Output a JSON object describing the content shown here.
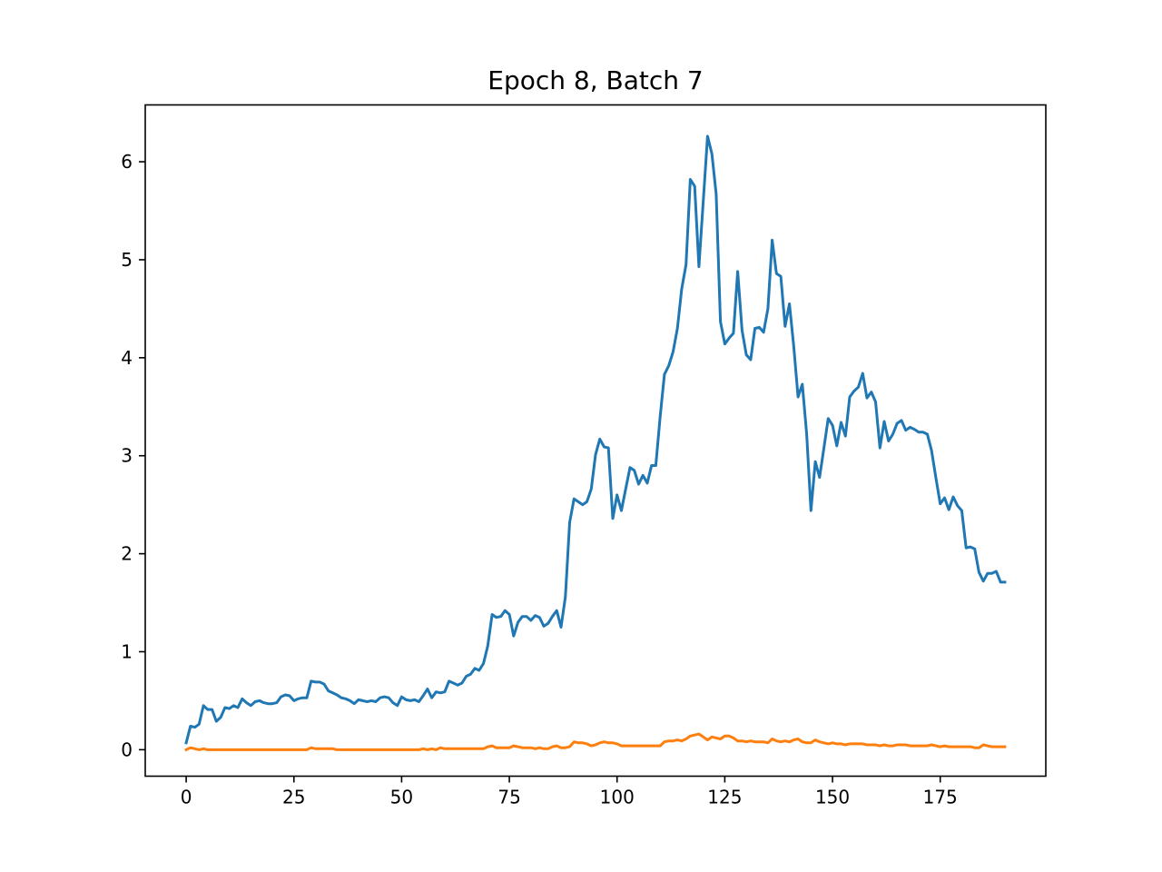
{
  "chart_data": {
    "type": "line",
    "title": "Epoch 8, Batch 7",
    "xlabel": "",
    "ylabel": "",
    "xlim": [
      -9.5,
      199.5
    ],
    "ylim": [
      -0.27,
      6.58
    ],
    "xticks": [
      0,
      25,
      50,
      75,
      100,
      125,
      150,
      175
    ],
    "yticks": [
      0,
      1,
      2,
      3,
      4,
      5,
      6
    ],
    "grid": false,
    "legend": "none",
    "series": [
      {
        "color": "#1f77b4",
        "x": [
          0,
          1,
          2,
          3,
          4,
          5,
          6,
          7,
          8,
          9,
          10,
          11,
          12,
          13,
          14,
          15,
          16,
          17,
          18,
          19,
          20,
          21,
          22,
          23,
          24,
          25,
          26,
          27,
          28,
          29,
          30,
          31,
          32,
          33,
          34,
          35,
          36,
          37,
          38,
          39,
          40,
          41,
          42,
          43,
          44,
          45,
          46,
          47,
          48,
          49,
          50,
          51,
          52,
          53,
          54,
          55,
          56,
          57,
          58,
          59,
          60,
          61,
          62,
          63,
          64,
          65,
          66,
          67,
          68,
          69,
          70,
          71,
          72,
          73,
          74,
          75,
          76,
          77,
          78,
          79,
          80,
          81,
          82,
          83,
          84,
          85,
          86,
          87,
          88,
          89,
          90,
          91,
          92,
          93,
          94,
          95,
          96,
          97,
          98,
          99,
          100,
          101,
          102,
          103,
          104,
          105,
          106,
          107,
          108,
          109,
          110,
          111,
          112,
          113,
          114,
          115,
          116,
          117,
          118,
          119,
          120,
          121,
          122,
          123,
          124,
          125,
          126,
          127,
          128,
          129,
          130,
          131,
          132,
          133,
          134,
          135,
          136,
          137,
          138,
          139,
          140,
          141,
          142,
          143,
          144,
          145,
          146,
          147,
          148,
          149,
          150,
          151,
          152,
          153,
          154,
          155,
          156,
          157,
          158,
          159,
          160,
          161,
          162,
          163,
          164,
          165,
          166,
          167,
          168,
          169,
          170,
          171,
          172,
          173,
          174,
          175,
          176,
          177,
          178,
          179,
          180,
          181,
          182,
          183,
          184,
          185,
          186,
          187,
          188,
          189,
          190
        ],
        "y": [
          0.07,
          0.24,
          0.23,
          0.26,
          0.45,
          0.41,
          0.41,
          0.29,
          0.33,
          0.43,
          0.42,
          0.45,
          0.43,
          0.52,
          0.48,
          0.45,
          0.49,
          0.5,
          0.48,
          0.47,
          0.47,
          0.48,
          0.54,
          0.56,
          0.55,
          0.5,
          0.52,
          0.53,
          0.53,
          0.7,
          0.69,
          0.69,
          0.67,
          0.6,
          0.58,
          0.56,
          0.53,
          0.52,
          0.5,
          0.47,
          0.51,
          0.5,
          0.49,
          0.5,
          0.49,
          0.53,
          0.54,
          0.53,
          0.48,
          0.45,
          0.54,
          0.51,
          0.5,
          0.51,
          0.49,
          0.55,
          0.62,
          0.53,
          0.59,
          0.58,
          0.59,
          0.7,
          0.68,
          0.66,
          0.68,
          0.75,
          0.77,
          0.83,
          0.81,
          0.88,
          1.06,
          1.38,
          1.35,
          1.36,
          1.42,
          1.38,
          1.16,
          1.3,
          1.36,
          1.36,
          1.32,
          1.37,
          1.35,
          1.26,
          1.29,
          1.36,
          1.42,
          1.25,
          1.56,
          2.32,
          2.56,
          2.53,
          2.5,
          2.53,
          2.66,
          3.01,
          3.17,
          3.09,
          3.08,
          2.36,
          2.6,
          2.44,
          2.66,
          2.88,
          2.85,
          2.71,
          2.8,
          2.72,
          2.9,
          2.9,
          3.4,
          3.83,
          3.92,
          4.06,
          4.3,
          4.7,
          4.95,
          5.82,
          5.75,
          4.93,
          5.6,
          6.26,
          6.08,
          5.67,
          4.37,
          4.14,
          4.2,
          4.25,
          4.88,
          4.28,
          4.03,
          3.98,
          4.3,
          4.31,
          4.26,
          4.5,
          5.2,
          4.86,
          4.83,
          4.32,
          4.55,
          4.12,
          3.6,
          3.73,
          3.22,
          2.44,
          2.94,
          2.78,
          3.08,
          3.38,
          3.31,
          3.1,
          3.34,
          3.2,
          3.6,
          3.66,
          3.7,
          3.84,
          3.59,
          3.65,
          3.55,
          3.08,
          3.35,
          3.15,
          3.22,
          3.33,
          3.36,
          3.26,
          3.29,
          3.27,
          3.24,
          3.24,
          3.22,
          3.05,
          2.77,
          2.51,
          2.57,
          2.45,
          2.58,
          2.49,
          2.44,
          2.06,
          2.07,
          2.05,
          1.81,
          1.72,
          1.8,
          1.8,
          1.82,
          1.71,
          1.71
        ]
      },
      {
        "color": "#ff7f0e",
        "x": [
          0,
          1,
          2,
          3,
          4,
          5,
          6,
          7,
          8,
          9,
          10,
          11,
          12,
          13,
          14,
          15,
          16,
          17,
          18,
          19,
          20,
          21,
          22,
          23,
          24,
          25,
          26,
          27,
          28,
          29,
          30,
          31,
          32,
          33,
          34,
          35,
          36,
          37,
          38,
          39,
          40,
          41,
          42,
          43,
          44,
          45,
          46,
          47,
          48,
          49,
          50,
          51,
          52,
          53,
          54,
          55,
          56,
          57,
          58,
          59,
          60,
          61,
          62,
          63,
          64,
          65,
          66,
          67,
          68,
          69,
          70,
          71,
          72,
          73,
          74,
          75,
          76,
          77,
          78,
          79,
          80,
          81,
          82,
          83,
          84,
          85,
          86,
          87,
          88,
          89,
          90,
          91,
          92,
          93,
          94,
          95,
          96,
          97,
          98,
          99,
          100,
          101,
          102,
          103,
          104,
          105,
          106,
          107,
          108,
          109,
          110,
          111,
          112,
          113,
          114,
          115,
          116,
          117,
          118,
          119,
          120,
          121,
          122,
          123,
          124,
          125,
          126,
          127,
          128,
          129,
          130,
          131,
          132,
          133,
          134,
          135,
          136,
          137,
          138,
          139,
          140,
          141,
          142,
          143,
          144,
          145,
          146,
          147,
          148,
          149,
          150,
          151,
          152,
          153,
          154,
          155,
          156,
          157,
          158,
          159,
          160,
          161,
          162,
          163,
          164,
          165,
          166,
          167,
          168,
          169,
          170,
          171,
          172,
          173,
          174,
          175,
          176,
          177,
          178,
          179,
          180,
          181,
          182,
          183,
          184,
          185,
          186,
          187,
          188,
          189,
          190
        ],
        "y": [
          0.0,
          0.02,
          0.01,
          0.0,
          0.01,
          0.0,
          0.0,
          0.0,
          0.0,
          0.0,
          0.0,
          0.0,
          0.0,
          0.0,
          0.0,
          0.0,
          0.0,
          0.0,
          0.0,
          0.0,
          0.0,
          0.0,
          0.0,
          0.0,
          0.0,
          0.0,
          0.0,
          0.0,
          0.0,
          0.02,
          0.01,
          0.01,
          0.01,
          0.01,
          0.01,
          0.0,
          0.0,
          0.0,
          0.0,
          0.0,
          0.0,
          0.0,
          0.0,
          0.0,
          0.0,
          0.0,
          0.0,
          0.0,
          0.0,
          0.0,
          0.0,
          0.0,
          0.0,
          0.0,
          0.0,
          0.01,
          0.0,
          0.01,
          0.0,
          0.02,
          0.01,
          0.01,
          0.01,
          0.01,
          0.01,
          0.01,
          0.01,
          0.01,
          0.01,
          0.01,
          0.03,
          0.04,
          0.02,
          0.02,
          0.02,
          0.02,
          0.04,
          0.03,
          0.02,
          0.02,
          0.02,
          0.01,
          0.02,
          0.01,
          0.01,
          0.03,
          0.04,
          0.02,
          0.02,
          0.03,
          0.08,
          0.07,
          0.07,
          0.06,
          0.04,
          0.05,
          0.07,
          0.08,
          0.07,
          0.07,
          0.06,
          0.04,
          0.04,
          0.04,
          0.04,
          0.04,
          0.04,
          0.04,
          0.04,
          0.04,
          0.04,
          0.08,
          0.09,
          0.09,
          0.1,
          0.09,
          0.11,
          0.14,
          0.15,
          0.16,
          0.13,
          0.1,
          0.13,
          0.12,
          0.11,
          0.14,
          0.14,
          0.12,
          0.09,
          0.09,
          0.08,
          0.09,
          0.08,
          0.08,
          0.08,
          0.07,
          0.11,
          0.09,
          0.08,
          0.09,
          0.08,
          0.1,
          0.11,
          0.08,
          0.07,
          0.07,
          0.1,
          0.08,
          0.07,
          0.06,
          0.07,
          0.06,
          0.06,
          0.05,
          0.06,
          0.06,
          0.06,
          0.06,
          0.05,
          0.05,
          0.05,
          0.04,
          0.05,
          0.04,
          0.04,
          0.05,
          0.05,
          0.05,
          0.04,
          0.04,
          0.04,
          0.04,
          0.04,
          0.05,
          0.04,
          0.03,
          0.04,
          0.03,
          0.03,
          0.03,
          0.03,
          0.03,
          0.03,
          0.02,
          0.02,
          0.05,
          0.04,
          0.03,
          0.03,
          0.03,
          0.03
        ]
      }
    ]
  }
}
